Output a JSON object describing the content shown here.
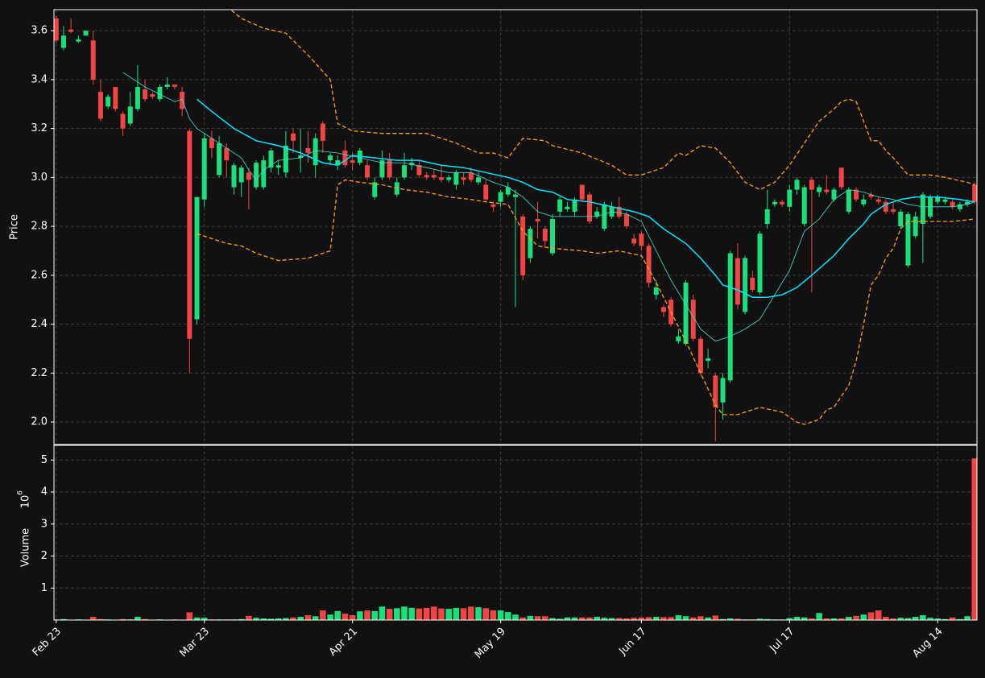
{
  "chart_data": {
    "type": "candlestick",
    "categories": [
      "Feb 23",
      null,
      null,
      null,
      null,
      null,
      null,
      null,
      null,
      null,
      null,
      null,
      null,
      null,
      null,
      null,
      null,
      null,
      null,
      null,
      "Mar 23",
      null,
      null,
      null,
      null,
      null,
      null,
      null,
      null,
      null,
      null,
      null,
      null,
      null,
      null,
      null,
      null,
      null,
      null,
      null,
      "Apr 21",
      null,
      null,
      null,
      null,
      null,
      null,
      null,
      null,
      null,
      null,
      null,
      null,
      null,
      null,
      null,
      null,
      null,
      null,
      null,
      "May 19",
      null,
      null,
      null,
      null,
      null,
      null,
      null,
      null,
      null,
      null,
      null,
      null,
      null,
      null,
      null,
      null,
      null,
      null,
      "Jun 17",
      null,
      null,
      null,
      null,
      null,
      null,
      null,
      null,
      null,
      null,
      null,
      null,
      null,
      null,
      null,
      null,
      null,
      null,
      null,
      "Jul 17",
      null,
      null,
      null,
      null,
      null,
      null,
      null,
      null,
      null,
      null,
      null,
      null,
      null,
      null,
      null,
      null,
      null,
      null,
      null,
      "Aug 14",
      null,
      null,
      null,
      null,
      null
    ],
    "open": [
      3.65,
      3.53,
      3.605,
      3.555,
      3.58,
      3.56,
      3.35,
      3.29,
      3.37,
      3.26,
      3.22,
      3.28,
      3.36,
      3.34,
      3.32,
      3.37,
      3.38,
      3.35,
      3.19,
      2.42,
      2.91,
      3.16,
      3.01,
      3.12,
      2.96,
      2.98,
      3.02,
      2.96,
      2.96,
      3.04,
      3.04,
      3.02,
      3.18,
      3.08,
      3.12,
      3.05,
      3.22,
      3.07,
      3.05,
      3.11,
      3.07,
      3.06,
      3.05,
      2.92,
      3.0,
      3.07,
      2.93,
      3.0,
      3.05,
      3.05,
      3.01,
      3.01,
      3.0,
      2.99,
      2.97,
      3.0,
      3.02,
      2.98,
      2.97,
      2.89,
      2.9,
      2.93,
      2.92,
      2.84,
      2.67,
      2.83,
      2.79,
      2.69,
      2.86,
      2.87,
      2.86,
      2.97,
      2.93,
      2.84,
      2.79,
      2.84,
      2.88,
      2.85,
      2.75,
      2.77,
      2.72,
      2.52,
      2.47,
      2.5,
      2.33,
      2.32,
      2.5,
      2.34,
      2.25,
      2.19,
      2.08,
      2.17,
      2.67,
      2.45,
      2.59,
      2.53,
      2.81,
      2.89,
      2.9,
      2.88,
      2.95,
      2.81,
      2.99,
      2.94,
      2.95,
      2.91,
      3.04,
      2.86,
      2.95,
      2.89,
      2.93,
      2.91,
      2.9,
      2.87,
      2.8,
      2.64,
      2.76,
      2.81,
      2.84,
      2.9,
      2.9,
      2.9,
      2.87,
      2.89,
      2.97
    ],
    "high": [
      3.66,
      3.62,
      3.65,
      3.58,
      3.6,
      3.6,
      3.4,
      3.34,
      3.37,
      3.27,
      3.35,
      3.46,
      3.4,
      3.35,
      3.38,
      3.41,
      3.38,
      3.37,
      3.2,
      2.92,
      3.18,
      3.19,
      3.17,
      3.14,
      3.06,
      3.05,
      3.04,
      3.07,
      3.09,
      3.12,
      3.07,
      3.19,
      3.2,
      3.2,
      3.19,
      3.18,
      3.23,
      3.1,
      3.09,
      3.15,
      3.1,
      3.12,
      3.07,
      3.0,
      3.11,
      3.1,
      3.0,
      3.1,
      3.08,
      3.07,
      3.02,
      3.03,
      3.05,
      3.01,
      3.03,
      3.02,
      3.04,
      3.02,
      2.99,
      2.9,
      2.95,
      2.98,
      2.95,
      2.85,
      2.8,
      2.9,
      2.8,
      2.85,
      2.92,
      2.9,
      2.92,
      2.97,
      2.94,
      2.88,
      2.9,
      2.9,
      2.92,
      2.86,
      2.77,
      2.78,
      2.73,
      2.58,
      2.48,
      2.51,
      2.38,
      2.58,
      2.52,
      2.35,
      2.3,
      2.2,
      2.2,
      2.7,
      2.73,
      2.68,
      2.62,
      2.78,
      2.95,
      2.91,
      2.91,
      2.97,
      3.0,
      2.97,
      3.0,
      2.97,
      3.01,
      2.96,
      3.04,
      2.96,
      2.96,
      2.93,
      2.94,
      2.92,
      2.91,
      2.9,
      2.87,
      2.86,
      2.86,
      2.94,
      2.93,
      2.93,
      2.92,
      2.91,
      2.9,
      2.91,
      2.98
    ],
    "low": [
      3.55,
      3.52,
      3.59,
      3.55,
      3.58,
      3.38,
      3.23,
      3.28,
      3.27,
      3.17,
      3.21,
      3.27,
      3.31,
      3.32,
      3.31,
      3.36,
      3.36,
      3.25,
      2.2,
      2.4,
      2.88,
      3.08,
      3.0,
      3.0,
      2.93,
      2.92,
      2.87,
      2.95,
      2.95,
      3.02,
      3.01,
      3.0,
      3.1,
      3.02,
      3.06,
      3.0,
      3.1,
      3.05,
      3.03,
      3.04,
      3.03,
      3.05,
      2.99,
      2.91,
      2.99,
      2.99,
      2.92,
      2.99,
      3.03,
      3.0,
      2.99,
      2.99,
      2.98,
      2.98,
      2.95,
      2.97,
      2.98,
      2.97,
      2.9,
      2.86,
      2.88,
      2.92,
      2.47,
      2.58,
      2.65,
      2.75,
      2.72,
      2.68,
      2.84,
      2.86,
      2.84,
      2.9,
      2.81,
      2.83,
      2.78,
      2.83,
      2.83,
      2.79,
      2.72,
      2.7,
      2.55,
      2.5,
      2.43,
      2.39,
      2.32,
      2.31,
      2.33,
      2.19,
      2.22,
      1.92,
      2.01,
      2.16,
      2.46,
      2.44,
      2.53,
      2.52,
      2.79,
      2.88,
      2.88,
      2.86,
      2.93,
      2.8,
      2.53,
      2.92,
      2.93,
      2.9,
      2.95,
      2.85,
      2.9,
      2.88,
      2.91,
      2.89,
      2.85,
      2.85,
      2.79,
      2.63,
      2.75,
      2.65,
      2.83,
      2.89,
      2.89,
      2.87,
      2.86,
      2.88,
      2.89
    ],
    "close": [
      3.56,
      3.58,
      3.595,
      3.565,
      3.6,
      3.4,
      3.24,
      3.33,
      3.28,
      3.2,
      3.29,
      3.37,
      3.32,
      3.33,
      3.37,
      3.38,
      3.37,
      3.28,
      2.34,
      2.92,
      3.16,
      3.12,
      3.14,
      3.07,
      3.05,
      3.04,
      2.99,
      3.06,
      3.07,
      3.11,
      3.05,
      3.13,
      3.15,
      3.09,
      3.1,
      3.16,
      3.15,
      3.09,
      3.07,
      3.05,
      3.06,
      3.11,
      3.0,
      2.98,
      3.07,
      3.0,
      2.98,
      3.05,
      3.06,
      3.01,
      3.0,
      3.0,
      2.99,
      3.0,
      3.02,
      2.99,
      2.99,
      3.0,
      2.91,
      2.88,
      2.94,
      2.96,
      2.93,
      2.6,
      2.79,
      2.82,
      2.74,
      2.83,
      2.91,
      2.88,
      2.91,
      2.91,
      2.82,
      2.86,
      2.89,
      2.88,
      2.84,
      2.8,
      2.73,
      2.72,
      2.57,
      2.55,
      2.45,
      2.4,
      2.35,
      2.57,
      2.34,
      2.2,
      2.26,
      2.06,
      2.18,
      2.69,
      2.48,
      2.67,
      2.54,
      2.77,
      2.87,
      2.9,
      2.89,
      2.95,
      2.99,
      2.96,
      2.95,
      2.96,
      2.94,
      2.95,
      2.96,
      2.95,
      2.91,
      2.91,
      2.92,
      2.9,
      2.86,
      2.86,
      2.86,
      2.85,
      2.84,
      2.93,
      2.92,
      2.92,
      2.91,
      2.88,
      2.89,
      2.9,
      2.9
    ],
    "up_color": "#19e07c",
    "down_color": "#f04545",
    "xlim": [
      -0.3,
      124.3
    ],
    "ylabel": "Price",
    "ylim": [
      1.908,
      3.686
    ],
    "yticks": [
      {
        "value": 2.0,
        "label": "2.0"
      },
      2.2,
      2.4,
      2.6,
      2.8,
      {
        "value": 3.0,
        "label": "3.0"
      },
      3.2,
      3.4,
      3.6
    ],
    "grid": true,
    "overlays": [
      {
        "x": [
          9,
          12,
          14,
          16,
          17,
          18,
          19,
          21,
          23,
          25,
          26,
          27,
          28,
          30,
          33,
          35,
          38,
          41,
          44,
          47,
          50,
          53,
          56,
          59,
          61,
          63,
          65,
          67,
          69,
          71,
          73,
          75,
          77,
          79,
          81,
          83,
          85,
          87,
          89,
          91,
          93,
          95,
          97,
          99,
          101,
          103,
          105,
          107,
          109,
          111,
          113,
          115,
          117,
          119,
          121,
          123,
          124
        ],
        "values": [
          3.43,
          3.37,
          3.34,
          3.31,
          3.32,
          3.24,
          3.2,
          3.16,
          3.12,
          3.08,
          3.03,
          2.99,
          3.03,
          3.07,
          3.08,
          3.11,
          3.1,
          3.08,
          3.06,
          3.06,
          3.04,
          3.02,
          3.02,
          2.98,
          2.96,
          2.92,
          2.86,
          2.84,
          2.84,
          2.84,
          2.84,
          2.86,
          2.85,
          2.82,
          2.7,
          2.58,
          2.48,
          2.38,
          2.33,
          2.35,
          2.38,
          2.42,
          2.52,
          2.62,
          2.78,
          2.83,
          2.91,
          2.95,
          2.94,
          2.92,
          2.91,
          2.89,
          2.88,
          2.88,
          2.88,
          2.89,
          2.9
        ],
        "color": "#40e0d0",
        "linewidth": 0.8,
        "dashed": false
      },
      {
        "x": [
          19,
          21,
          24,
          27,
          30,
          33,
          36,
          38,
          40,
          43,
          46,
          49,
          52,
          55,
          58,
          61,
          63,
          65,
          67,
          69,
          72,
          75,
          78,
          80,
          82,
          83,
          85,
          87,
          89,
          90,
          92,
          94,
          96,
          98,
          100,
          102,
          105,
          107,
          109,
          110,
          112,
          114,
          116,
          119,
          122,
          124
        ],
        "values": [
          3.32,
          3.27,
          3.2,
          3.15,
          3.13,
          3.1,
          3.06,
          3.05,
          3.09,
          3.08,
          3.07,
          3.07,
          3.05,
          3.04,
          3.02,
          3.0,
          2.98,
          2.95,
          2.94,
          2.91,
          2.9,
          2.88,
          2.86,
          2.84,
          2.79,
          2.77,
          2.73,
          2.67,
          2.6,
          2.56,
          2.54,
          2.51,
          2.51,
          2.52,
          2.55,
          2.6,
          2.68,
          2.75,
          2.81,
          2.85,
          2.89,
          2.91,
          2.92,
          2.92,
          2.91,
          2.9
        ],
        "color": "#00e5ff",
        "linewidth": 1.5,
        "dashed": false
      },
      {
        "x": [
          23,
          25,
          28,
          31,
          34,
          37,
          38,
          40,
          44,
          50,
          54,
          57,
          59,
          61,
          63,
          66,
          67,
          71,
          75,
          77,
          79,
          82,
          84,
          85,
          87,
          89,
          91,
          93,
          95,
          97,
          99,
          101,
          103,
          105,
          106,
          107,
          108,
          110,
          111,
          112,
          113,
          115,
          118,
          120,
          123,
          124
        ],
        "values": [
          3.7,
          3.65,
          3.61,
          3.59,
          3.5,
          3.4,
          3.22,
          3.19,
          3.18,
          3.18,
          3.14,
          3.1,
          3.1,
          3.08,
          3.16,
          3.15,
          3.13,
          3.1,
          3.05,
          3.01,
          3.01,
          3.04,
          3.1,
          3.09,
          3.13,
          3.12,
          3.06,
          2.98,
          2.95,
          2.98,
          3.05,
          3.14,
          3.23,
          3.28,
          3.31,
          3.32,
          3.31,
          3.15,
          3.15,
          3.11,
          3.08,
          3.01,
          3.01,
          3.0,
          2.98,
          2.97
        ],
        "color": "#ffa500",
        "linewidth": 1.3,
        "dashed": true
      },
      {
        "x": [
          19,
          21,
          23,
          25,
          27,
          30,
          34,
          36,
          37,
          38,
          39,
          41,
          44,
          47,
          50,
          53,
          56,
          58,
          61,
          63,
          65,
          67,
          71,
          73,
          76,
          79,
          81,
          83,
          85,
          87,
          89,
          90,
          92,
          95,
          98,
          100,
          101,
          103,
          104,
          105,
          107,
          108,
          109,
          110,
          111,
          112,
          113,
          114,
          115,
          118,
          121,
          124
        ],
        "values": [
          2.77,
          2.75,
          2.73,
          2.72,
          2.69,
          2.66,
          2.67,
          2.69,
          2.7,
          2.97,
          2.99,
          2.98,
          2.97,
          2.95,
          2.94,
          2.92,
          2.91,
          2.9,
          2.89,
          2.78,
          2.72,
          2.71,
          2.7,
          2.69,
          2.7,
          2.68,
          2.57,
          2.45,
          2.33,
          2.2,
          2.07,
          2.03,
          2.03,
          2.06,
          2.04,
          2.0,
          1.99,
          2.01,
          2.05,
          2.06,
          2.15,
          2.25,
          2.4,
          2.56,
          2.6,
          2.67,
          2.71,
          2.79,
          2.82,
          2.82,
          2.82,
          2.83
        ],
        "color": "#ffa500",
        "linewidth": 1.3,
        "dashed": true
      }
    ],
    "volume": {
      "ylabel": "Volume",
      "scale_base": "10",
      "scale_exponent": "6",
      "values": [
        0.02,
        0.03,
        0.01,
        0.02,
        0.01,
        0.1,
        0.03,
        0.02,
        0.01,
        0.03,
        0.02,
        0.1,
        0.03,
        0.01,
        0.02,
        0.01,
        0.02,
        0.01,
        0.24,
        0.08,
        0.07,
        0.02,
        0.02,
        0.02,
        0.02,
        0.03,
        0.13,
        0.07,
        0.05,
        0.04,
        0.05,
        0.06,
        0.08,
        0.1,
        0.15,
        0.12,
        0.3,
        0.17,
        0.28,
        0.2,
        0.15,
        0.27,
        0.3,
        0.28,
        0.42,
        0.35,
        0.37,
        0.42,
        0.38,
        0.36,
        0.38,
        0.42,
        0.36,
        0.35,
        0.38,
        0.37,
        0.42,
        0.4,
        0.37,
        0.3,
        0.3,
        0.25,
        0.17,
        0.08,
        0.13,
        0.12,
        0.12,
        0.06,
        0.04,
        0.08,
        0.08,
        0.08,
        0.08,
        0.1,
        0.07,
        0.06,
        0.06,
        0.05,
        0.07,
        0.08,
        0.09,
        0.1,
        0.09,
        0.09,
        0.15,
        0.12,
        0.08,
        0.12,
        0.08,
        0.14,
        0.03,
        0.05,
        0.04,
        0.02,
        0.02,
        0.04,
        0.03,
        0.02,
        0.02,
        0.06,
        0.1,
        0.08,
        0.05,
        0.22,
        0.05,
        0.05,
        0.05,
        0.1,
        0.13,
        0.17,
        0.24,
        0.3,
        0.1,
        0.05,
        0.07,
        0.06,
        0.1,
        0.15,
        0.07,
        0.05,
        0.03,
        0.08,
        0.03,
        0.12,
        5.05
      ],
      "ylim": [
        0,
        5.46
      ],
      "yticks": [
        1,
        2,
        3,
        4,
        5
      ]
    }
  }
}
